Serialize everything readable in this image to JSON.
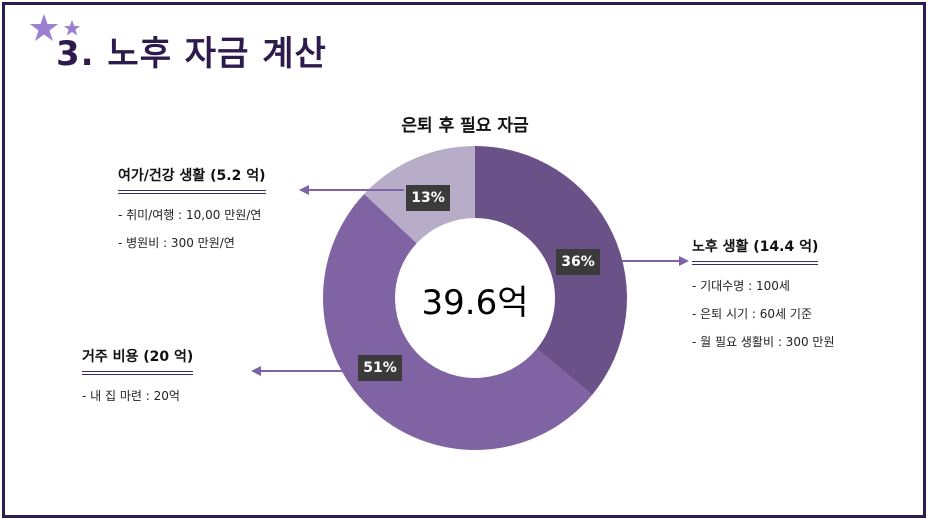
{
  "page_title": "3. 노후 자금 계산",
  "chart_data": {
    "type": "pie",
    "title": "은퇴 후 필요 자금",
    "center_total": "39.6억",
    "slices": [
      {
        "label": "노후 생활",
        "percent": 36,
        "percent_label": "36%",
        "color": "#6a5289"
      },
      {
        "label": "거주 비용",
        "percent": 51,
        "percent_label": "51%",
        "color": "#7f63a3"
      },
      {
        "label": "여가/건강 생활",
        "percent": 13,
        "percent_label": "13%",
        "color": "#b7adc9"
      }
    ]
  },
  "callouts": {
    "retirement": {
      "title": "노후 생활 (14.4 억)",
      "items": [
        "- 기대수명 : 100세",
        "- 은퇴 시기 : 60세 기준",
        "- 월 필요 생활비 : 300 만원"
      ]
    },
    "housing": {
      "title": "거주 비용 (20 억)",
      "items": [
        "-  내 집 마련 : 20억"
      ]
    },
    "leisure": {
      "title": "여가/건강 생활 (5.2 억)",
      "items": [
        "- 취미/여행 : 10,00 만원/연",
        "- 병원비 : 300 만원/연"
      ]
    }
  },
  "colors": {
    "accent": "#2d1b4e",
    "arrow": "#7d64a8",
    "star": "#9b7fd0"
  },
  "icons": [
    "star-icon"
  ]
}
